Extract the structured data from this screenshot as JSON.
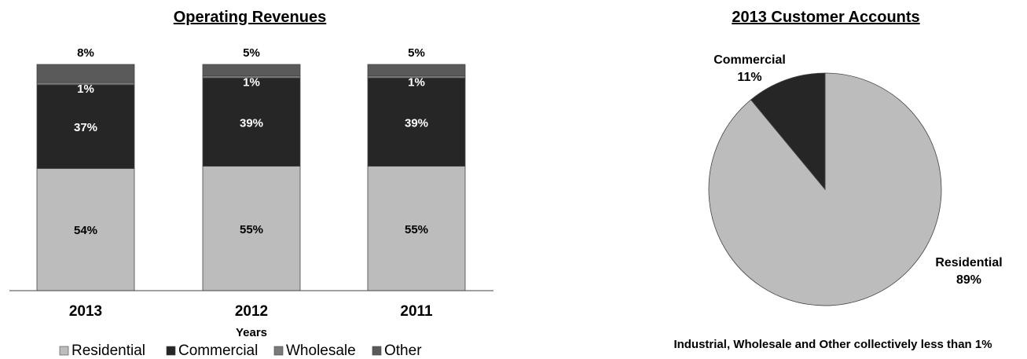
{
  "chart_data": [
    {
      "type": "bar",
      "stacked": true,
      "title": "Operating Revenues",
      "xlabel": "Years",
      "ylabel": "",
      "categories": [
        "2013",
        "2012",
        "2011"
      ],
      "ylim": [
        0,
        100
      ],
      "grid": false,
      "legend": "bottom",
      "series": [
        {
          "name": "Residential",
          "color": "#bcbcbc",
          "values": [
            54,
            55,
            55
          ],
          "labels": [
            "54%",
            "55%",
            "55%"
          ],
          "label_color": "#000000"
        },
        {
          "name": "Commercial",
          "color": "#262626",
          "values": [
            37,
            39,
            39
          ],
          "labels": [
            "37%",
            "39%",
            "39%"
          ],
          "label_color": "#ffffff"
        },
        {
          "name": "Wholesale",
          "color": "#7a7a7a",
          "values": [
            1,
            1,
            1
          ],
          "labels": [
            "1%",
            "1%",
            "1%"
          ],
          "label_color": "#ffffff"
        },
        {
          "name": "Other",
          "color": "#5a5a5a",
          "values": [
            8,
            5,
            5
          ],
          "labels": [
            "8%",
            "5%",
            "5%"
          ],
          "label_color": "#000000"
        }
      ]
    },
    {
      "type": "pie",
      "title": "2013 Customer Accounts",
      "legend": "none",
      "slices": [
        {
          "name": "Residential",
          "value": 89,
          "label": "89%",
          "color": "#bcbcbc"
        },
        {
          "name": "Commercial",
          "value": 11,
          "label": "11%",
          "color": "#262626"
        }
      ],
      "note": "Industrial, Wholesale and Other collectively less than 1%"
    }
  ]
}
